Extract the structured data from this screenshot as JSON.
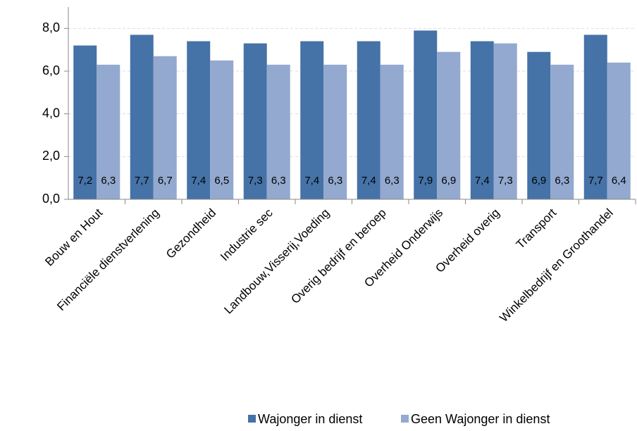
{
  "chart_data": {
    "type": "bar",
    "categories": [
      "Bouw en Hout",
      "Financiële dienstverlening",
      "Gezondheid",
      "Industrie sec",
      "Landbouw,Visserij,Voeding",
      "Overig bedrijf en beroep",
      "Overheid Onderwijs",
      "Overheid overig",
      "Transport",
      "Winkelbedrijf en Groothandel"
    ],
    "series": [
      {
        "name": "Wajonger in dienst",
        "color": "#4572a7",
        "values": [
          7.2,
          7.7,
          7.4,
          7.3,
          7.4,
          7.4,
          7.9,
          7.4,
          6.9,
          7.7
        ],
        "value_labels": [
          "7,2",
          "7,7",
          "7,4",
          "7,3",
          "7,4",
          "7,4",
          "7,9",
          "7,4",
          "6,9",
          "7,7"
        ]
      },
      {
        "name": "Geen Wajonger in dienst",
        "color": "#93a9cf",
        "values": [
          6.3,
          6.7,
          6.5,
          6.3,
          6.3,
          6.3,
          6.9,
          7.3,
          6.3,
          6.4
        ],
        "value_labels": [
          "6,3",
          "6,7",
          "6,5",
          "6,3",
          "6,3",
          "6,3",
          "6,9",
          "7,3",
          "6,3",
          "6,4"
        ]
      }
    ],
    "ylim": [
      0,
      9
    ],
    "yticks": [
      {
        "value": 0,
        "label": "0,0"
      },
      {
        "value": 2,
        "label": "2,0"
      },
      {
        "value": 4,
        "label": "4,0"
      },
      {
        "value": 6,
        "label": "6,0"
      },
      {
        "value": 8,
        "label": "8,0"
      }
    ],
    "grid": true,
    "legend": "bottom"
  }
}
